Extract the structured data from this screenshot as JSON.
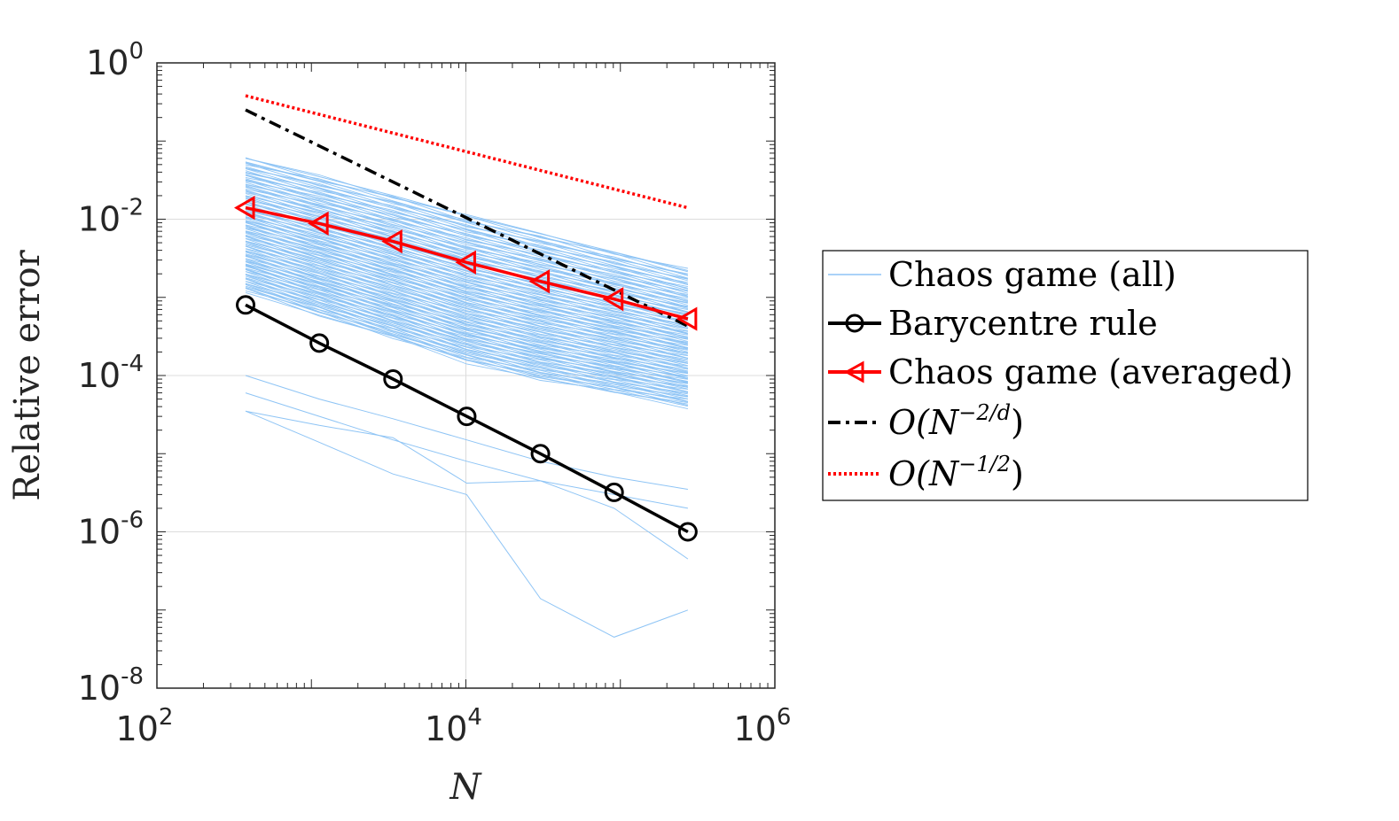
{
  "chart_data": {
    "type": "line",
    "scale": "loglog",
    "xlabel": "N",
    "ylabel": "Relative error",
    "x_log_range": [
      2,
      6
    ],
    "y_log_range": [
      -8,
      0
    ],
    "xticks": [
      {
        "base": "10",
        "exp": "2"
      },
      {
        "base": "10",
        "exp": "4"
      },
      {
        "base": "10",
        "exp": "6"
      }
    ],
    "yticks": [
      {
        "base": "10",
        "exp": "0"
      },
      {
        "base": "10",
        "exp": "-2"
      },
      {
        "base": "10",
        "exp": "-4"
      },
      {
        "base": "10",
        "exp": "-6"
      },
      {
        "base": "10",
        "exp": "-8"
      }
    ],
    "grid": true,
    "x_values": [
      375,
      1125,
      3375,
      10125,
      30375,
      91125,
      273375
    ],
    "colors": {
      "chaos_all": "#8ec4f5",
      "barycentre": "#000000",
      "chaos_avg": "#ff0000",
      "ref_2d": "#000000",
      "ref_half": "#ff0000"
    },
    "series": [
      {
        "name": "Barycentre rule",
        "marker": "circle",
        "values": [
          0.0008,
          0.00026,
          9e-05,
          3e-05,
          1e-05,
          3.2e-06,
          1e-06
        ]
      },
      {
        "name": "Chaos game (averaged)",
        "marker": "triangle-left",
        "values": [
          0.014,
          0.0088,
          0.0052,
          0.0028,
          0.0016,
          0.00095,
          0.00053
        ]
      },
      {
        "name": "O(N^{-2/d})",
        "style": "dashdot",
        "x": [
          375,
          273375
        ],
        "values": [
          0.25,
          0.00043
        ]
      },
      {
        "name": "O(N^{-1/2})",
        "style": "dotted",
        "x": [
          375,
          273375
        ],
        "values": [
          0.38,
          0.014
        ]
      }
    ],
    "chaos_all": {
      "name": "Chaos game (all)",
      "upper_envelope": [
        0.06,
        0.035,
        0.02,
        0.011,
        0.0065,
        0.0038,
        0.0022
      ],
      "lower_envelope": [
        3.5e-05,
        1.4e-05,
        5.5e-06,
        3e-06,
        1.4e-07,
        4.5e-08,
        1e-07
      ],
      "dense_band_low": [
        0.0012,
        0.0006,
        0.0003,
        0.00015,
        9e-05,
        6e-05,
        4e-05
      ],
      "outliers": [
        [
          0.0001,
          5e-05,
          2.8e-05,
          1.5e-05,
          8e-06,
          5e-06,
          3.5e-06
        ],
        [
          6e-05,
          3e-05,
          1.5e-05,
          8e-06,
          4.5e-06,
          3e-06,
          2e-06
        ],
        [
          3.5e-05,
          2.3e-05,
          1.6e-05,
          4.2e-06,
          4.5e-06,
          2e-06,
          4.5e-07
        ],
        [
          3.5e-05,
          1.4e-05,
          5.5e-06,
          3e-06,
          1.4e-07,
          4.5e-08,
          1e-07
        ]
      ]
    },
    "legend": {
      "position": "outside-right",
      "entries": [
        {
          "text": "Chaos game (all)"
        },
        {
          "text": "Barycentre rule"
        },
        {
          "text": "Chaos game (averaged)"
        },
        {
          "text": "O(N",
          "sup": "−2/d",
          "close": ")"
        },
        {
          "text": "O(N",
          "sup": "−1/2",
          "close": ")"
        }
      ]
    }
  }
}
